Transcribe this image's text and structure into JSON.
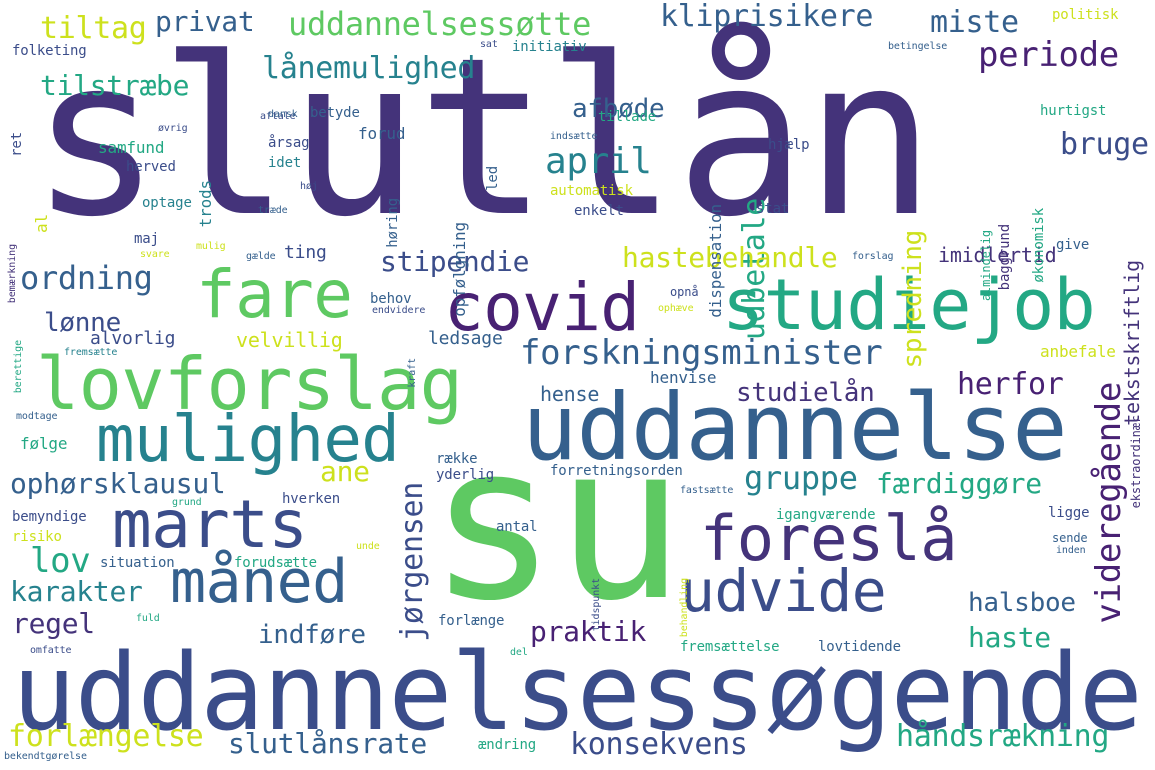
{
  "palette": {
    "purple": "#44337a",
    "indigo": "#3b4d8a",
    "blue": "#35608d",
    "teal": "#26828e",
    "green": "#23a884",
    "lime": "#5ec962",
    "yellow": "#cde11d",
    "deep": "#482173",
    "background": "#ffffff"
  },
  "words": [
    {
      "text": "slutlån"
    },
    {
      "text": "su"
    },
    {
      "text": "uddannelsessøgende"
    },
    {
      "text": "uddannelse"
    },
    {
      "text": "studiejob"
    },
    {
      "text": "lovforslag"
    },
    {
      "text": "covid"
    },
    {
      "text": "mulighed"
    },
    {
      "text": "fare"
    },
    {
      "text": "marts"
    },
    {
      "text": "foreslå"
    },
    {
      "text": "måned"
    },
    {
      "text": "udvide"
    },
    {
      "text": "forskningsminister"
    },
    {
      "text": "videregående"
    },
    {
      "text": "uddannelsessøtte"
    },
    {
      "text": "privat"
    },
    {
      "text": "kliprisikere"
    },
    {
      "text": "tiltag"
    },
    {
      "text": "miste"
    },
    {
      "text": "periode"
    },
    {
      "text": "lånemulighed"
    },
    {
      "text": "tilstræbe"
    },
    {
      "text": "afbøde"
    },
    {
      "text": "april"
    },
    {
      "text": "udbetale"
    },
    {
      "text": "bruge"
    },
    {
      "text": "spredning"
    },
    {
      "text": "tekstskriftlig"
    },
    {
      "text": "ordning"
    },
    {
      "text": "stipendie"
    },
    {
      "text": "hastebehandle"
    },
    {
      "text": "imidlertid"
    },
    {
      "text": "lønne"
    },
    {
      "text": "alvorlig"
    },
    {
      "text": "velvillig"
    },
    {
      "text": "ledsage"
    },
    {
      "text": "herfor"
    },
    {
      "text": "studielån"
    },
    {
      "text": "hense"
    },
    {
      "text": "henvise"
    },
    {
      "text": "anbefale"
    },
    {
      "text": "ophørsklausul"
    },
    {
      "text": "ane"
    },
    {
      "text": "gruppe"
    },
    {
      "text": "færdiggøre"
    },
    {
      "text": "jørgensen"
    },
    {
      "text": "lov"
    },
    {
      "text": "karakter"
    },
    {
      "text": "regel"
    },
    {
      "text": "indføre"
    },
    {
      "text": "praktik"
    },
    {
      "text": "halsboe"
    },
    {
      "text": "haste"
    },
    {
      "text": "forlængelse"
    },
    {
      "text": "slutlånsrate"
    },
    {
      "text": "konsekvens"
    },
    {
      "text": "håndsrækning"
    },
    {
      "text": "politisk"
    },
    {
      "text": "folketing"
    },
    {
      "text": "sat"
    },
    {
      "text": "initiativ"
    },
    {
      "text": "betingelse"
    },
    {
      "text": "hurtigst"
    },
    {
      "text": "aftale"
    },
    {
      "text": "betyde"
    },
    {
      "text": "forud"
    },
    {
      "text": "tillade"
    },
    {
      "text": "dispensation"
    },
    {
      "text": "hjælp"
    },
    {
      "text": "samfund"
    },
    {
      "text": "herved"
    },
    {
      "text": "trods"
    },
    {
      "text": "årsag"
    },
    {
      "text": "idet"
    },
    {
      "text": "høring"
    },
    {
      "text": "led"
    },
    {
      "text": "indsætte"
    },
    {
      "text": "opfølgning"
    },
    {
      "text": "automatisk"
    },
    {
      "text": "enkelt"
    },
    {
      "text": "stat"
    },
    {
      "text": "almindelig"
    },
    {
      "text": "baggrund"
    },
    {
      "text": "økonomisk"
    },
    {
      "text": "give"
    },
    {
      "text": "optage"
    },
    {
      "text": "maj"
    },
    {
      "text": "ting"
    },
    {
      "text": "forslag"
    },
    {
      "text": "behov"
    },
    {
      "text": "endvidere"
    },
    {
      "text": "opnå"
    },
    {
      "text": "ophæve"
    },
    {
      "text": "kraft"
    },
    {
      "text": "fremsætte"
    },
    {
      "text": "berettige"
    },
    {
      "text": "modtage"
    },
    {
      "text": "følge"
    },
    {
      "text": "række"
    },
    {
      "text": "yderlig"
    },
    {
      "text": "forretningsorden"
    },
    {
      "text": "hverken"
    },
    {
      "text": "grund"
    },
    {
      "text": "fastsætte"
    },
    {
      "text": "ekstraordinær"
    },
    {
      "text": "bemyndige"
    },
    {
      "text": "risiko"
    },
    {
      "text": "igangværende"
    },
    {
      "text": "ligge"
    },
    {
      "text": "sende"
    },
    {
      "text": "inden"
    },
    {
      "text": "situation"
    },
    {
      "text": "forudsætte"
    },
    {
      "text": "unde"
    },
    {
      "text": "antal"
    },
    {
      "text": "tidspunkt"
    },
    {
      "text": "behandling"
    },
    {
      "text": "fuld"
    },
    {
      "text": "forlænge"
    },
    {
      "text": "omfatte"
    },
    {
      "text": "fremsættelse"
    },
    {
      "text": "lovtidende"
    },
    {
      "text": "del"
    },
    {
      "text": "ændring"
    },
    {
      "text": "bekendtgørelse"
    },
    {
      "text": "øvrig"
    },
    {
      "text": "dansk"
    },
    {
      "text": "ret"
    },
    {
      "text": "al"
    },
    {
      "text": "bemærkning"
    },
    {
      "text": "høj"
    },
    {
      "text": "træde"
    },
    {
      "text": "mulig"
    },
    {
      "text": "svare"
    },
    {
      "text": "gælde"
    }
  ]
}
